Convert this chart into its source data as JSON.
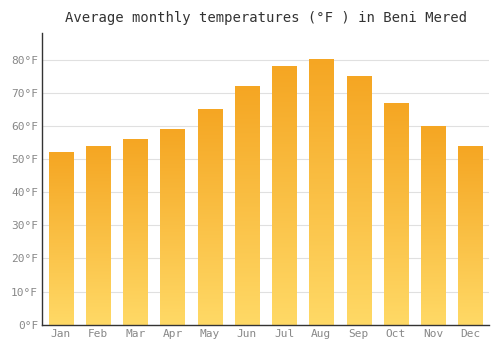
{
  "title": "Average monthly temperatures (°F ) in Beni Mered",
  "months": [
    "Jan",
    "Feb",
    "Mar",
    "Apr",
    "May",
    "Jun",
    "Jul",
    "Aug",
    "Sep",
    "Oct",
    "Nov",
    "Dec"
  ],
  "values": [
    52,
    54,
    56,
    59,
    65,
    72,
    78,
    80,
    75,
    67,
    60,
    54
  ],
  "bar_color_top": "#F5A623",
  "bar_color_bottom": "#FFD966",
  "ylim": [
    0,
    88
  ],
  "yticks": [
    0,
    10,
    20,
    30,
    40,
    50,
    60,
    70,
    80
  ],
  "ytick_labels": [
    "0°F",
    "10°F",
    "20°F",
    "30°F",
    "40°F",
    "50°F",
    "60°F",
    "70°F",
    "80°F"
  ],
  "background_color": "#FFFFFF",
  "grid_color": "#E0E0E0",
  "title_fontsize": 10,
  "tick_fontsize": 8,
  "font_family": "monospace"
}
